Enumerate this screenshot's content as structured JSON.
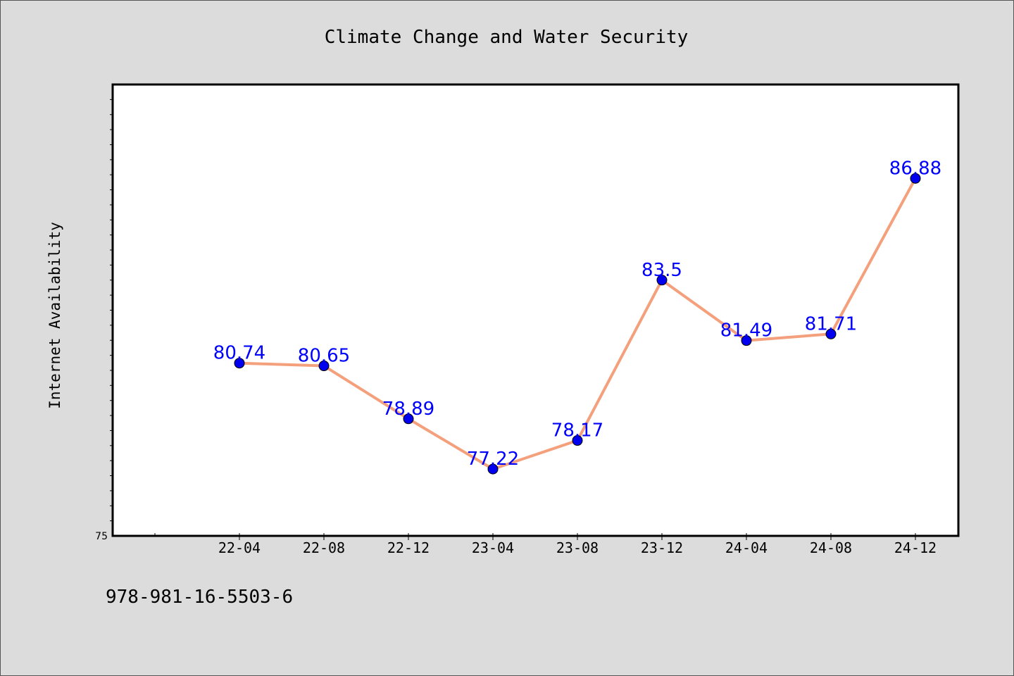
{
  "chart_data": {
    "type": "line",
    "title": "Climate Change and Water Security",
    "xlabel": "",
    "ylabel": "Internet Availability",
    "categories": [
      "22-04",
      "22-08",
      "22-12",
      "23-04",
      "23-08",
      "23-12",
      "24-04",
      "24-08",
      "24-12"
    ],
    "series": [
      {
        "values": [
          80.74,
          80.65,
          78.89,
          77.22,
          78.17,
          83.5,
          81.49,
          81.71,
          86.88
        ]
      }
    ],
    "data_labels": [
      "80.74",
      "80.65",
      "78.89",
      "77.22",
      "78.17",
      "83.5",
      "81.49",
      "81.71",
      "86.88"
    ],
    "ylim": [
      75,
      90
    ],
    "y_tick_labels": [
      "75"
    ],
    "grid": false,
    "legend": "none",
    "colors": {
      "line": "#f4a07c",
      "marker": "#0000ee",
      "label": "#0000ff",
      "plot_background": "#ffffff",
      "page_background": "#dcdcdc"
    }
  },
  "footer": {
    "isbn": "978-981-16-5503-6"
  }
}
